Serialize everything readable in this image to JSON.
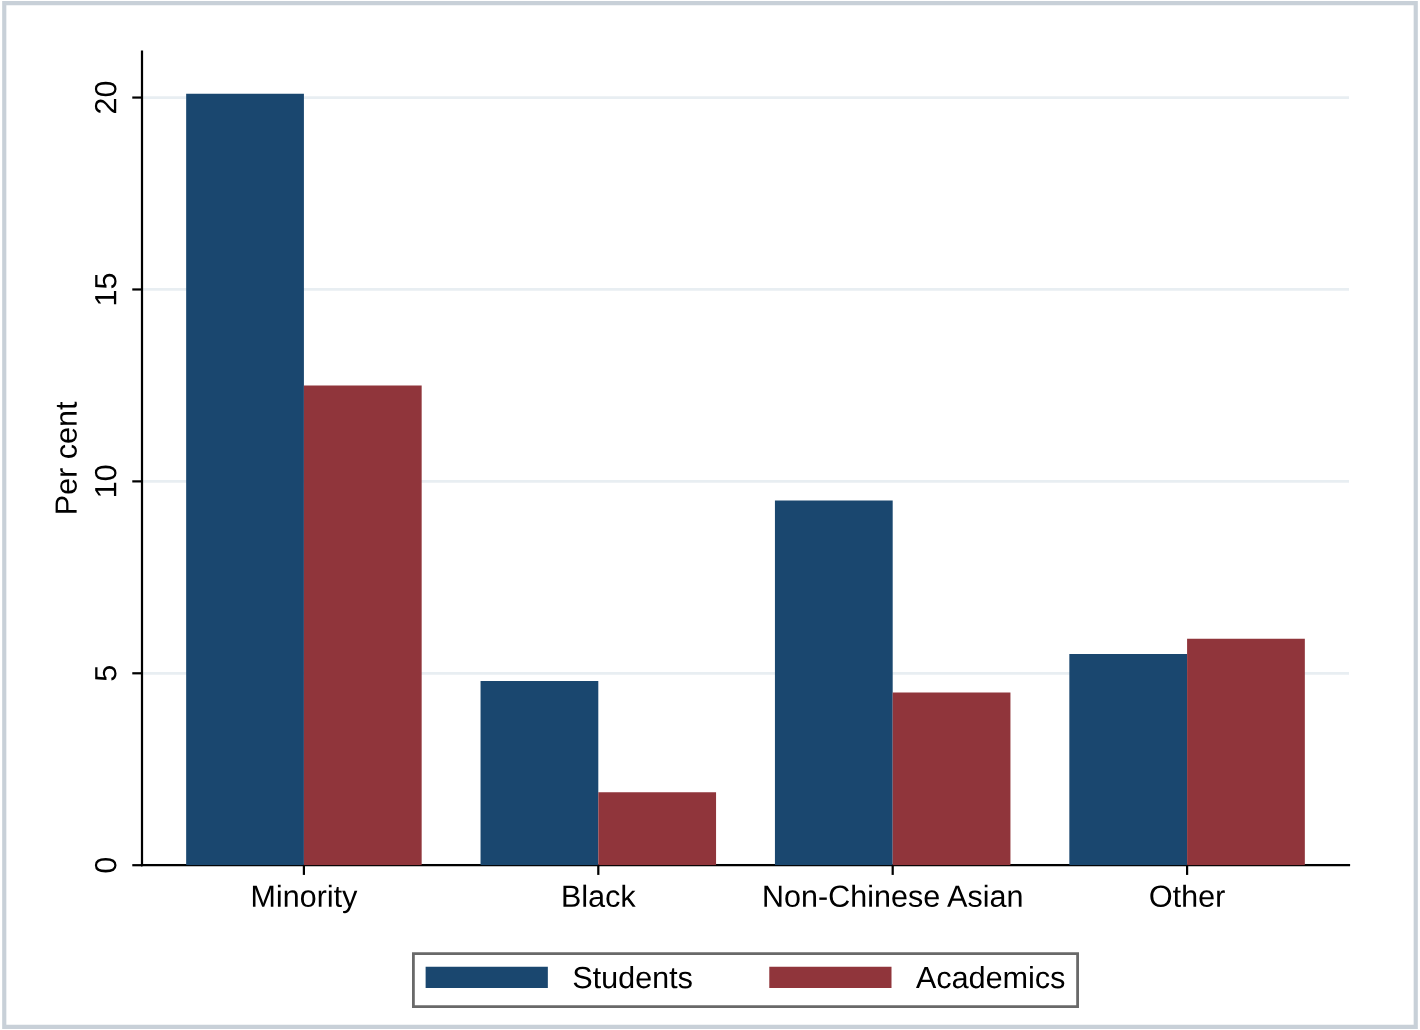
{
  "chart_data": {
    "type": "bar",
    "ylabel": "Per cent",
    "categories": [
      "Minority",
      "Black",
      "Non-Chinese Asian",
      "Other"
    ],
    "series": [
      {
        "name": "Students",
        "color": "#1a476f",
        "values": [
          20.1,
          4.8,
          9.5,
          5.5
        ]
      },
      {
        "name": "Academics",
        "color": "#90353b",
        "values": [
          12.5,
          1.9,
          4.5,
          5.9
        ]
      }
    ],
    "ylim": [
      0,
      21.2
    ],
    "yticks": [
      0,
      5,
      10,
      15,
      20
    ],
    "grid": "y",
    "legend": "bottom"
  }
}
